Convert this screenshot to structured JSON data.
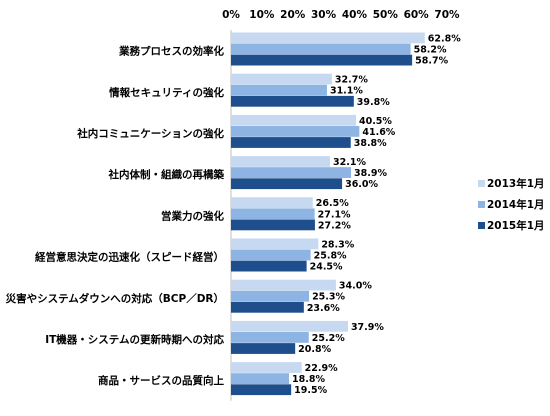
{
  "chart_data": {
    "type": "bar",
    "orientation": "horizontal",
    "categories": [
      "業務プロセスの効率化",
      "情報セキュリティの強化",
      "社内コミュニケーションの強化",
      "社内体制・組織の再構築",
      "営業力の強化",
      "経営意思決定の迅速化（スピード経営）",
      "災害やシステムダウンへの対応（BCP／DR）",
      "IT機器・システムの更新時期への対応",
      "商品・サービスの品質向上"
    ],
    "series": [
      {
        "name": "2013年1月",
        "color": "#c6d9f1",
        "values": [
          62.8,
          32.7,
          40.5,
          32.1,
          26.5,
          28.3,
          34.0,
          37.9,
          22.9
        ]
      },
      {
        "name": "2014年1月",
        "color": "#8db4e2",
        "values": [
          58.2,
          31.1,
          41.6,
          38.9,
          27.1,
          25.8,
          25.3,
          25.2,
          18.8
        ]
      },
      {
        "name": "2015年1月",
        "color": "#1f4e8c",
        "values": [
          58.7,
          39.8,
          38.8,
          36.0,
          27.2,
          24.5,
          23.6,
          20.8,
          19.5
        ]
      }
    ],
    "data_labels": [
      [
        "62.8%",
        "32.7%",
        "40.5%",
        "32.1%",
        "26.5%",
        "28.3%",
        "34.0%",
        "37.9%",
        "22.9%"
      ],
      [
        "58.2%",
        "31.1%",
        "41.6%",
        "38.9%",
        "27.1%",
        "25.8%",
        "25.3%",
        "25.2%",
        "18.8%"
      ],
      [
        "58.7%",
        "39.8%",
        "38.8%",
        "36.0%",
        "27.2%",
        "24.5%",
        "23.6%",
        "20.8%",
        "19.5%"
      ]
    ],
    "xlim": [
      0,
      70
    ],
    "x_ticks": [
      0,
      10,
      20,
      30,
      40,
      50,
      60,
      70
    ],
    "x_tick_labels": [
      "0%",
      "10%",
      "20%",
      "30%",
      "40%",
      "50%",
      "60%",
      "70%"
    ],
    "x_axis_position": "top",
    "grid": false,
    "legend_position": "right"
  }
}
